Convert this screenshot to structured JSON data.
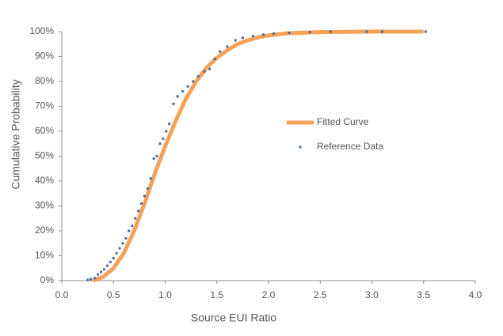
{
  "chart_data": {
    "type": "line",
    "x_label": "Source EUI Ratio",
    "y_label": "Cumulative Probability",
    "xlim": [
      0,
      4
    ],
    "ylim": [
      0,
      100
    ],
    "xticks": [
      {
        "value": 0,
        "label": "0.0"
      },
      0.5,
      {
        "value": 1,
        "label": "1.0"
      },
      1.5,
      {
        "value": 2,
        "label": "2.0"
      },
      2.5,
      {
        "value": 3,
        "label": "3.0"
      },
      3.5,
      {
        "value": 4,
        "label": "4.0"
      }
    ],
    "yticks": [
      {
        "value": 0,
        "label": "0%"
      },
      {
        "value": 10,
        "label": "10%"
      },
      {
        "value": 20,
        "label": "20%"
      },
      {
        "value": 30,
        "label": "30%"
      },
      {
        "value": 40,
        "label": "40%"
      },
      {
        "value": 50,
        "label": "50%"
      },
      {
        "value": 60,
        "label": "60%"
      },
      {
        "value": 70,
        "label": "70%"
      },
      {
        "value": 80,
        "label": "80%"
      },
      {
        "value": 90,
        "label": "90%"
      },
      {
        "value": 100,
        "label": "100%"
      }
    ],
    "grid": false,
    "series": [
      {
        "name": "Fitted Curve",
        "type": "line",
        "color": "#f5a259",
        "x": [
          0.3,
          0.4,
          0.5,
          0.6,
          0.7,
          0.8,
          0.9,
          1.0,
          1.1,
          1.2,
          1.3,
          1.4,
          1.5,
          1.6,
          1.7,
          1.8,
          1.9,
          2.0,
          2.2,
          2.5,
          3.0,
          3.5
        ],
        "values": [
          0,
          1.5,
          5,
          11,
          20,
          31,
          43,
          54,
          64,
          73,
          80,
          85.5,
          89.5,
          92.5,
          95,
          96.5,
          97.7,
          98.5,
          99.4,
          99.8,
          100,
          100
        ]
      },
      {
        "name": "Reference Data",
        "type": "scatter",
        "color": "#4a6b9c",
        "x": [
          0.25,
          0.28,
          0.32,
          0.35,
          0.38,
          0.41,
          0.44,
          0.47,
          0.5,
          0.53,
          0.56,
          0.59,
          0.62,
          0.65,
          0.68,
          0.71,
          0.74,
          0.77,
          0.8,
          0.83,
          0.86,
          0.89,
          0.92,
          0.95,
          0.98,
          1.01,
          1.04,
          1.08,
          1.12,
          1.17,
          1.22,
          1.27,
          1.32,
          1.38,
          1.43,
          1.48,
          1.53,
          1.6,
          1.68,
          1.75,
          1.85,
          1.95,
          2.05,
          2.2,
          2.4,
          2.6,
          2.95,
          3.1,
          3.52
        ],
        "values": [
          0.3,
          0.6,
          1,
          2.5,
          3.5,
          4.5,
          6,
          7.5,
          9,
          11,
          13,
          15,
          17,
          20,
          22,
          25,
          28,
          31,
          34,
          37,
          41,
          49,
          50,
          55,
          57,
          60,
          63,
          71,
          74,
          76,
          78,
          80,
          82,
          84,
          85,
          89,
          92,
          94,
          96.5,
          97.5,
          98.2,
          98.8,
          99.2,
          99.5,
          99.8,
          100,
          100,
          100,
          100
        ]
      }
    ]
  }
}
